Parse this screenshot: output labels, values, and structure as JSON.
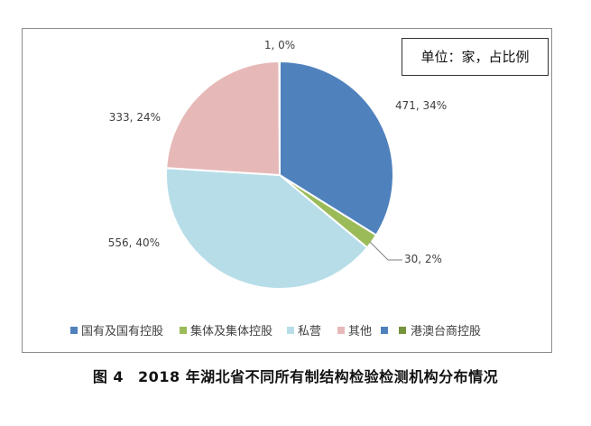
{
  "unit_label": "单位：家，占比例",
  "figure": {
    "number": "图 4",
    "title": "2018 年湖北省不同所有制结构检验检测机构分布情况"
  },
  "chart_data": {
    "type": "pie",
    "title": "",
    "slices": [
      {
        "name": "国有及国有控股",
        "value": 471,
        "percent": "34%",
        "label": "471, 34%",
        "color": "#4f81bd"
      },
      {
        "name": "集体及集体控股",
        "value": 30,
        "percent": "2%",
        "label": "30, 2%",
        "color": "#9bbb59"
      },
      {
        "name": "私营",
        "value": 556,
        "percent": "40%",
        "label": "556, 40%",
        "color": "#b7dde8"
      },
      {
        "name": "其他",
        "value": 333,
        "percent": "24%",
        "label": "333, 24%",
        "color": "#e6b9b8"
      },
      {
        "name": "港澳台商控股",
        "value": 1,
        "percent": "0%",
        "label": "1, 0%",
        "color": "#4f81bd"
      }
    ],
    "legend_placement": "bottom",
    "legend": [
      {
        "name": "国有及国有控股",
        "color": "#4f81bd"
      },
      {
        "name": "集体及集体控股",
        "color": "#9bbb59"
      },
      {
        "name": "私营",
        "color": "#b7dde8"
      },
      {
        "name": "其他",
        "color": "#e6b9b8"
      },
      {
        "name": "港澳台商控股",
        "color": "#4f81bd"
      },
      {
        "name": "",
        "color": "#77933c"
      }
    ]
  }
}
